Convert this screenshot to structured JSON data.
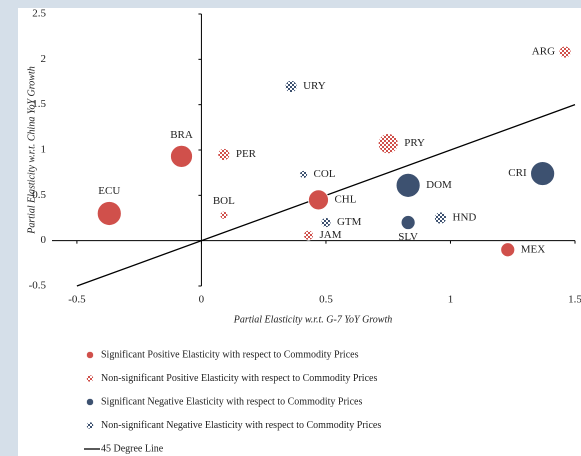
{
  "chart_data": {
    "type": "bubble",
    "x_label": "Partial Elasticity w.r.t. G-7 YoY Growth",
    "y_label": "Partial Elasticity w.r.t. China YoY Growth",
    "xlim": [
      -0.6,
      1.5
    ],
    "ylim": [
      -0.5,
      2.5
    ],
    "xticks": [
      -0.5,
      0,
      0.5,
      1,
      1.5
    ],
    "yticks": [
      -0.5,
      0,
      0.5,
      1,
      1.5,
      2,
      2.5
    ],
    "reference_line": "45 Degree Line",
    "series": [
      {
        "name": "Significant Positive Elasticity with respect to Commodity Prices",
        "color": "#d0504b",
        "pattern": "solid",
        "labels": [
          "BRA",
          "ECU",
          "CHL",
          "MEX"
        ],
        "x": [
          -0.08,
          -0.37,
          0.47,
          1.23
        ],
        "values": [
          0.93,
          0.3,
          0.45,
          -0.1
        ],
        "sizes": [
          11,
          12,
          10,
          7
        ]
      },
      {
        "name": "Non-significant Positive Elasticity with respect to Commodity Prices",
        "color": "#d0504b",
        "pattern": "checkered",
        "labels": [
          "ARG",
          "PER",
          "PRY",
          "BOL",
          "JAM"
        ],
        "x": [
          1.46,
          0.09,
          0.75,
          0.09,
          0.43
        ],
        "values": [
          2.08,
          0.95,
          1.07,
          0.28,
          0.06
        ],
        "sizes": [
          6,
          6,
          10,
          4,
          5
        ]
      },
      {
        "name": "Significant Negative Elasticity with respect to Commodity Prices",
        "color": "#3d5170",
        "pattern": "solid",
        "labels": [
          "DOM",
          "CRI",
          "SLV"
        ],
        "x": [
          0.83,
          1.37,
          0.83
        ],
        "values": [
          0.61,
          0.74,
          0.2
        ],
        "sizes": [
          12,
          12,
          7
        ]
      },
      {
        "name": "Non-significant Negative Elasticity with respect to Commodity Prices",
        "color": "#3d5170",
        "pattern": "checkered",
        "labels": [
          "URY",
          "COL",
          "GTM",
          "HND"
        ],
        "x": [
          0.36,
          0.41,
          0.5,
          0.96
        ],
        "values": [
          1.7,
          0.73,
          0.2,
          0.25
        ],
        "sizes": [
          6,
          4,
          5,
          6
        ]
      }
    ]
  }
}
